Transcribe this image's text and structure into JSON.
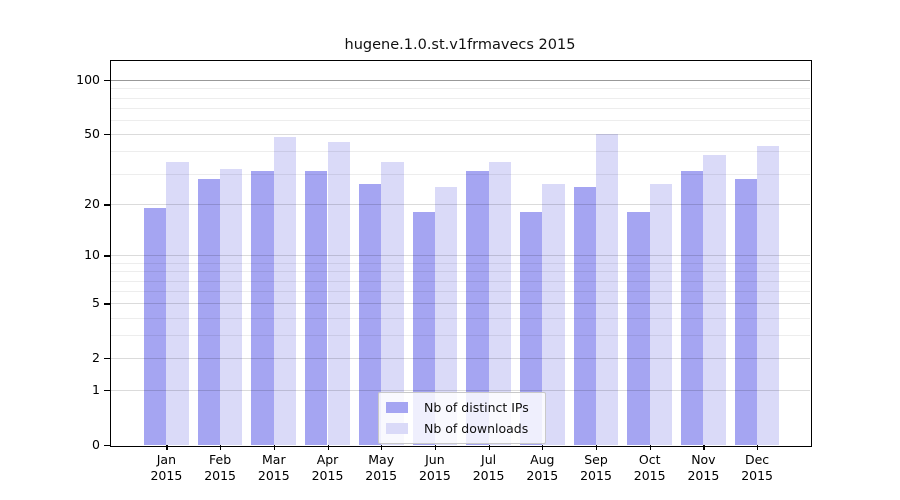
{
  "title": "hugene.1.0.st.v1frmavecs 2015",
  "chart_data": {
    "type": "bar",
    "title": "hugene.1.0.st.v1frmavecs 2015",
    "categories": [
      "Jan",
      "Feb",
      "Mar",
      "Apr",
      "May",
      "Jun",
      "Jul",
      "Aug",
      "Sep",
      "Oct",
      "Nov",
      "Dec"
    ],
    "x_sublabel": "2015",
    "series": [
      {
        "name": "Nb of distinct IPs",
        "color": "#a5a5f2",
        "values": [
          19,
          28,
          31,
          31,
          26,
          18,
          31,
          18,
          25,
          18,
          31,
          28
        ]
      },
      {
        "name": "Nb of downloads",
        "color": "#dadaf8",
        "values": [
          35,
          32,
          48,
          45,
          35,
          25,
          35,
          26,
          50,
          26,
          38,
          43
        ]
      }
    ],
    "yscale": "log10(value+1)",
    "yticks": [
      0,
      1,
      2,
      5,
      10,
      20,
      50,
      100
    ],
    "minor_gridlines": [
      3,
      4,
      6,
      7,
      8,
      9,
      30,
      40,
      60,
      70,
      80,
      90
    ],
    "ylim": [
      0,
      129
    ],
    "xlabel": "",
    "ylabel": "",
    "grid": "horizontal",
    "legend_position": "bottom-center-inside"
  },
  "legend": {
    "items": [
      {
        "label": "Nb of distinct IPs",
        "color": "#a5a5f2"
      },
      {
        "label": "Nb of downloads",
        "color": "#dadaf8"
      }
    ]
  }
}
